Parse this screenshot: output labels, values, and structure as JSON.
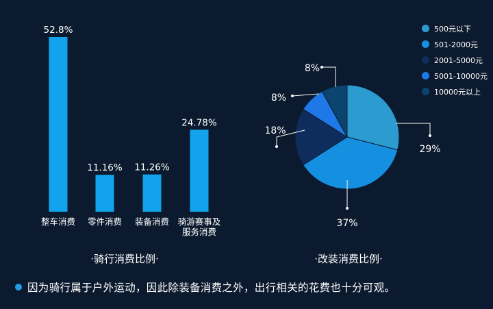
{
  "colors": {
    "background": "#0b1a2e",
    "bar": "#12a3ec",
    "accent": "#1f9be8"
  },
  "chart_data": [
    {
      "type": "bar",
      "title": "·骑行消费比例·",
      "categories": [
        "整车消费",
        "零件消费",
        "装备消费",
        "骑游赛事及服务消费"
      ],
      "category_lines": [
        [
          "整车消费"
        ],
        [
          "零件消费"
        ],
        [
          "装备消费"
        ],
        [
          "骑游赛事及",
          "服务消费"
        ]
      ],
      "values": [
        52.8,
        11.16,
        11.26,
        24.78
      ],
      "value_labels": [
        "52.8%",
        "11.16%",
        "11.26%",
        "24.78%"
      ],
      "ylim": [
        0,
        52.8
      ],
      "grid": false
    },
    {
      "type": "pie",
      "title": "·改装消费比例·",
      "slices": [
        {
          "label": "500元以下",
          "value": 29,
          "value_label": "29%",
          "color": "#2b9bd0"
        },
        {
          "label": "501-2000元",
          "value": 37,
          "value_label": "37%",
          "color": "#1590e0"
        },
        {
          "label": "2001-5000元",
          "value": 18,
          "value_label": "18%",
          "color": "#0f2d5c"
        },
        {
          "label": "5001-10000元",
          "value": 8,
          "value_label": "8%",
          "color": "#1f78e8"
        },
        {
          "label": "10000元以上",
          "value": 8,
          "value_label": "8%",
          "color": "#0c4470"
        }
      ],
      "legend_position": "top-right"
    }
  ],
  "footer": {
    "text": "因为骑行属于户外运动，因此除装备消费之外，出行相关的花费也十分可观。"
  }
}
